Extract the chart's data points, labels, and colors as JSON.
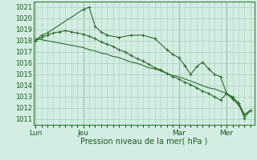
{
  "title": "",
  "xlabel": "Pression niveau de la mer( hPa )",
  "ylabel": "",
  "bg_color": "#d4ede3",
  "grid_color": "#b0d4c4",
  "line_color": "#2a6e2a",
  "marker_color": "#2a6e2a",
  "ylim": [
    1010.5,
    1021.5
  ],
  "yticks": [
    1011,
    1012,
    1013,
    1014,
    1015,
    1016,
    1017,
    1018,
    1019,
    1020,
    1021
  ],
  "day_positions": [
    0,
    48,
    144,
    192
  ],
  "day_labels": [
    "Lun",
    "Jeu",
    "Mar",
    "Mer"
  ],
  "series1_x": [
    0,
    6,
    12,
    48,
    54,
    60,
    66,
    72,
    84,
    96,
    108,
    120,
    132,
    138,
    144,
    150,
    156,
    162,
    168,
    174,
    180,
    186,
    192,
    198,
    204,
    210,
    216
  ],
  "series1_y": [
    1018.0,
    1018.5,
    1018.7,
    1020.8,
    1021.0,
    1019.3,
    1018.8,
    1018.5,
    1018.3,
    1018.5,
    1018.5,
    1018.2,
    1017.2,
    1016.8,
    1016.5,
    1015.8,
    1015.0,
    1015.7,
    1016.1,
    1015.5,
    1015.0,
    1014.8,
    1013.3,
    1013.0,
    1012.4,
    1011.1,
    1011.8
  ],
  "series2_x": [
    0,
    6,
    12,
    18,
    24,
    30,
    36,
    42,
    48,
    54,
    60,
    66,
    72,
    78,
    84,
    90,
    96,
    102,
    108,
    114,
    120,
    126,
    132,
    138,
    144,
    150,
    156,
    162,
    168,
    174,
    180,
    186,
    192,
    198,
    204,
    210,
    216
  ],
  "series2_y": [
    1018.0,
    1018.3,
    1018.5,
    1018.7,
    1018.8,
    1018.9,
    1018.8,
    1018.7,
    1018.6,
    1018.4,
    1018.2,
    1017.9,
    1017.7,
    1017.5,
    1017.2,
    1017.0,
    1016.7,
    1016.4,
    1016.2,
    1015.9,
    1015.6,
    1015.4,
    1015.1,
    1014.8,
    1014.6,
    1014.3,
    1014.1,
    1013.8,
    1013.5,
    1013.3,
    1013.0,
    1012.7,
    1013.3,
    1012.8,
    1012.3,
    1011.4,
    1011.8
  ],
  "series3_x": [
    0,
    6,
    12,
    18,
    24,
    30,
    36,
    42,
    48,
    54,
    60,
    66,
    72,
    78,
    84,
    90,
    96,
    102,
    108,
    114,
    120,
    126,
    132,
    138,
    144,
    150,
    156,
    162,
    168,
    174,
    180,
    186,
    192,
    198,
    204,
    210,
    216
  ],
  "series3_y": [
    1018.2,
    1018.1,
    1018.0,
    1017.9,
    1017.8,
    1017.7,
    1017.6,
    1017.5,
    1017.4,
    1017.2,
    1017.1,
    1016.9,
    1016.8,
    1016.6,
    1016.5,
    1016.3,
    1016.1,
    1016.0,
    1015.8,
    1015.6,
    1015.5,
    1015.3,
    1015.1,
    1014.9,
    1014.8,
    1014.6,
    1014.4,
    1014.2,
    1014.0,
    1013.8,
    1013.7,
    1013.5,
    1013.3,
    1012.9,
    1012.5,
    1011.4,
    1011.8
  ]
}
